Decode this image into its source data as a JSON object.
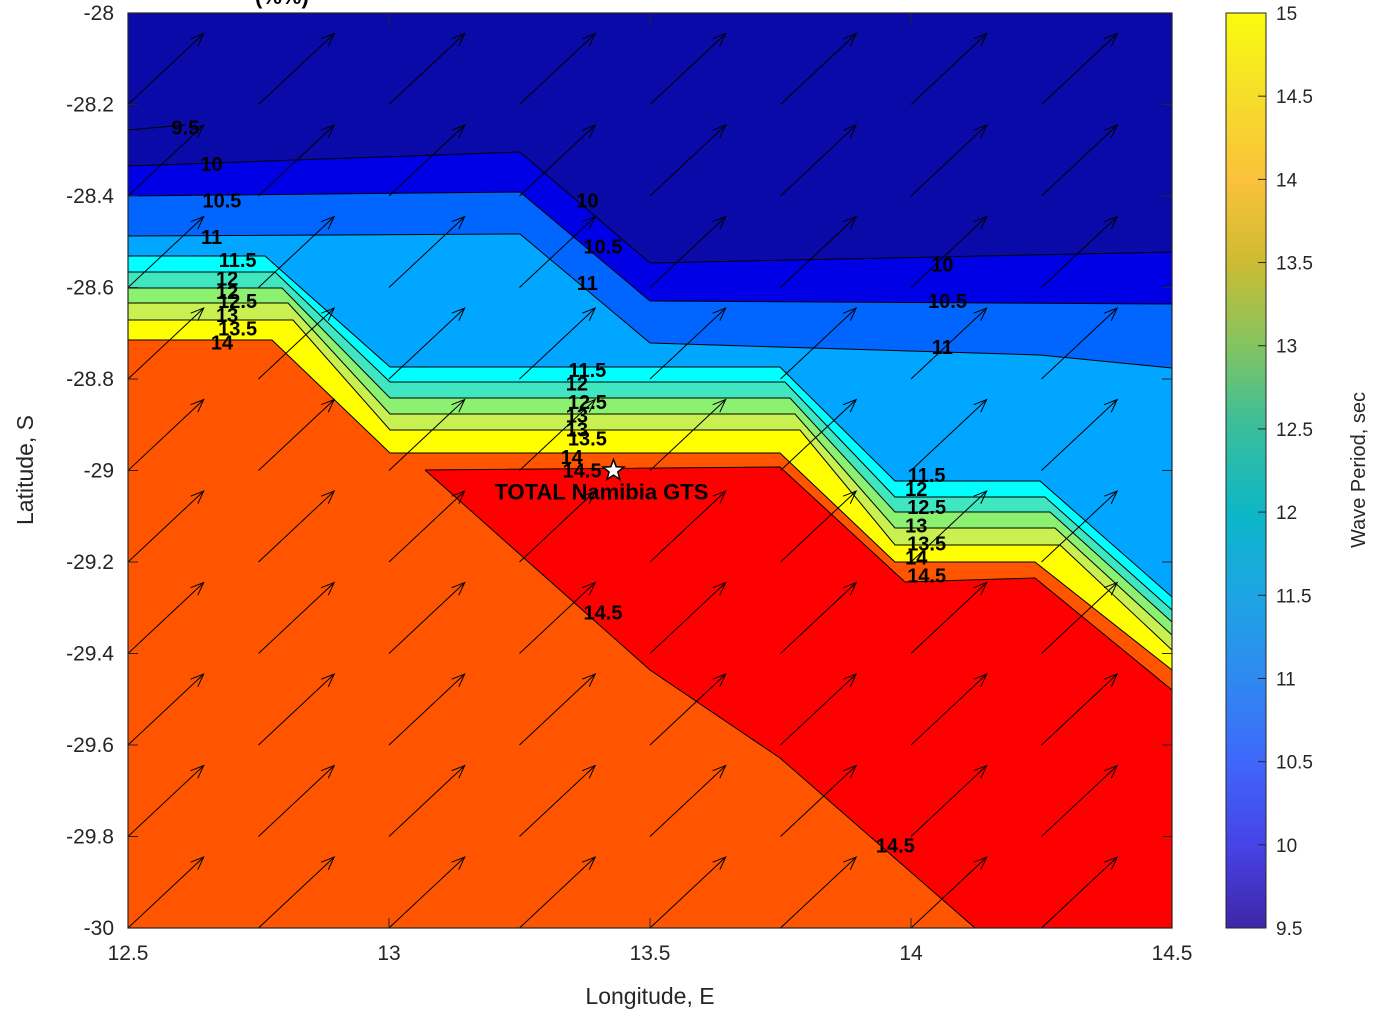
{
  "chart_data": {
    "type": "contour",
    "title_fragment": "(%%)",
    "xlabel": "Longitude, E",
    "ylabel": "Latitude, S",
    "xlim": [
      12.5,
      14.5
    ],
    "ylim": [
      -30,
      -28
    ],
    "x_ticks": [
      "12.5",
      "13",
      "13.5",
      "14",
      "14.5"
    ],
    "y_ticks": [
      "-28",
      "-28.2",
      "-28.4",
      "-28.6",
      "-28.8",
      "-29",
      "-29.2",
      "-29.4",
      "-29.6",
      "-29.8",
      "-30"
    ],
    "colorbar": {
      "label": "Wave Period, sec",
      "range": [
        9.5,
        15
      ],
      "ticks": [
        "9.5",
        "10",
        "10.5",
        "11",
        "11.5",
        "12",
        "12.5",
        "13",
        "13.5",
        "14",
        "14.5",
        "15"
      ]
    },
    "contour_levels": [
      9.5,
      10,
      10.5,
      11,
      11.5,
      12,
      12.5,
      13,
      13.5,
      14,
      14.5,
      15
    ],
    "contour_labels": [
      {
        "text": "9.5",
        "x": 12.61,
        "y": -28.25
      },
      {
        "text": "10",
        "x": 12.66,
        "y": -28.33
      },
      {
        "text": "10.5",
        "x": 12.68,
        "y": -28.41
      },
      {
        "text": "11",
        "x": 12.66,
        "y": -28.49
      },
      {
        "text": "11.5",
        "x": 12.71,
        "y": -28.54
      },
      {
        "text": "12",
        "x": 12.69,
        "y": -28.58
      },
      {
        "text": "12",
        "x": 12.69,
        "y": -28.61
      },
      {
        "text": "12.5",
        "x": 12.71,
        "y": -28.63
      },
      {
        "text": "13",
        "x": 12.69,
        "y": -28.66
      },
      {
        "text": "13.5",
        "x": 12.71,
        "y": -28.69
      },
      {
        "text": "14",
        "x": 12.68,
        "y": -28.72
      },
      {
        "text": "10",
        "x": 13.38,
        "y": -28.41
      },
      {
        "text": "10.5",
        "x": 13.41,
        "y": -28.51
      },
      {
        "text": "11",
        "x": 13.38,
        "y": -28.59
      },
      {
        "text": "11.5",
        "x": 13.38,
        "y": -28.78
      },
      {
        "text": "12",
        "x": 13.36,
        "y": -28.81
      },
      {
        "text": "12.5",
        "x": 13.38,
        "y": -28.85
      },
      {
        "text": "13",
        "x": 13.36,
        "y": -28.88
      },
      {
        "text": "13",
        "x": 13.36,
        "y": -28.91
      },
      {
        "text": "13.5",
        "x": 13.38,
        "y": -28.93
      },
      {
        "text": "14",
        "x": 13.35,
        "y": -28.97
      },
      {
        "text": "14.5",
        "x": 13.37,
        "y": -29.0
      },
      {
        "text": "14.5",
        "x": 13.41,
        "y": -29.31
      },
      {
        "text": "10",
        "x": 14.06,
        "y": -28.55
      },
      {
        "text": "10.5",
        "x": 14.07,
        "y": -28.63
      },
      {
        "text": "11",
        "x": 14.06,
        "y": -28.73
      },
      {
        "text": "11.5",
        "x": 14.03,
        "y": -29.01
      },
      {
        "text": "12",
        "x": 14.01,
        "y": -29.04
      },
      {
        "text": "12.5",
        "x": 14.03,
        "y": -29.08
      },
      {
        "text": "13",
        "x": 14.01,
        "y": -29.12
      },
      {
        "text": "13.5",
        "x": 14.03,
        "y": -29.16
      },
      {
        "text": "14",
        "x": 14.01,
        "y": -29.19
      },
      {
        "text": "14.5",
        "x": 14.03,
        "y": -29.23
      },
      {
        "text": "14.5",
        "x": 13.97,
        "y": -29.82
      }
    ],
    "marker": {
      "name": "TOTAL Namibia GTS",
      "x": 13.43,
      "y": -29.0,
      "symbol": "star"
    },
    "vector_field": {
      "dx": 0.1,
      "dy": 0.1,
      "grid_step_x": 0.25,
      "grid_step_y": 0.2
    }
  }
}
